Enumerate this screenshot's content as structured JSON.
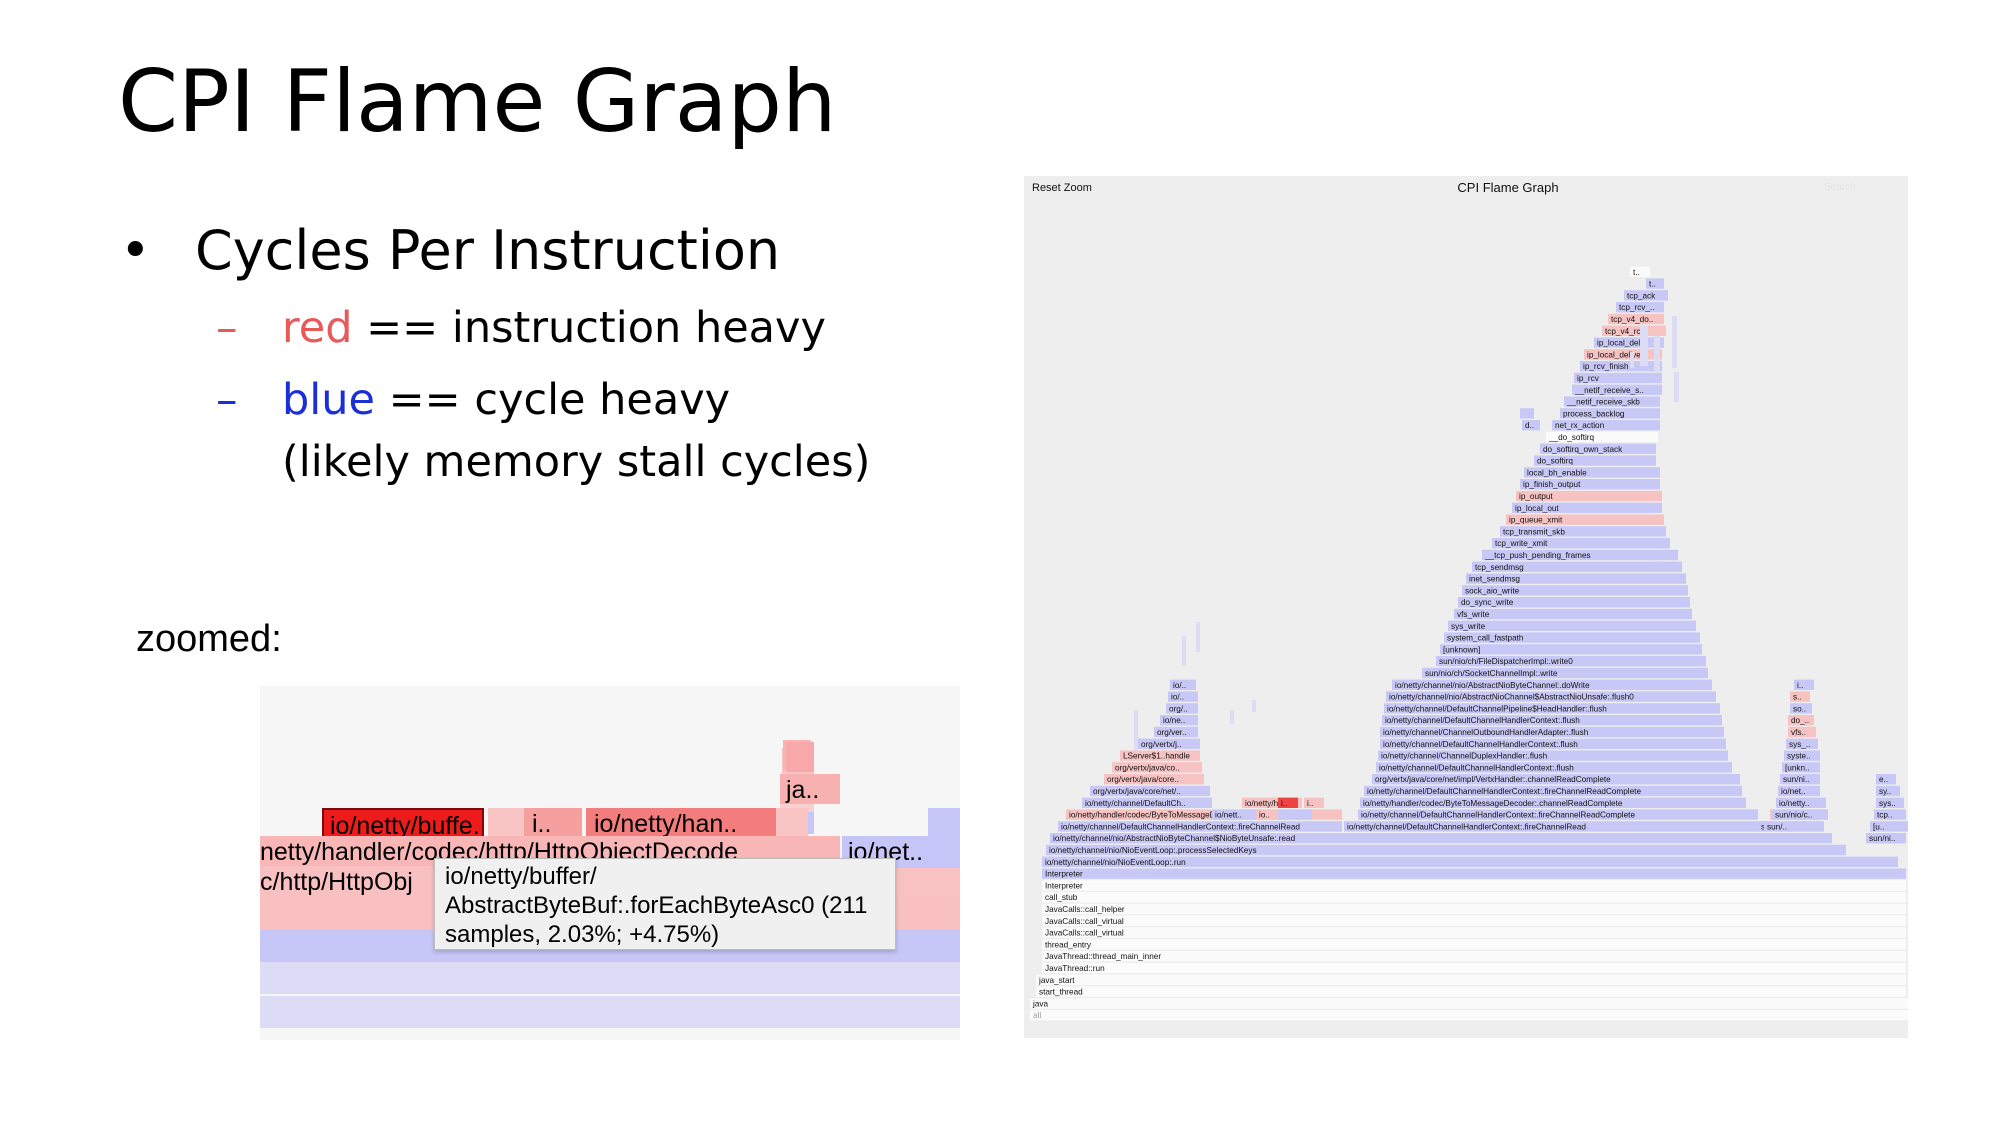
{
  "slide": {
    "title": "CPI Flame Graph",
    "bullet": "Cycles Per Instruction",
    "legend": [
      {
        "dash": "–",
        "term": "red",
        "rest": " == instruction heavy",
        "color": "#e8595a"
      },
      {
        "dash": "–",
        "term": "blue",
        "rest": " == cycle heavy",
        "color": "#1a2fd9"
      }
    ],
    "legend_note": "(likely memory stall cycles)",
    "zoomed_label": "zoomed:"
  },
  "zoom": {
    "frames": [
      {
        "label": "ja..",
        "color": "#f7b1b1"
      },
      {
        "label": "io/netty/buffe..",
        "color": "#ee1b1b"
      },
      {
        "label": "i..",
        "color": "#f59f9f"
      },
      {
        "label": "io/netty/han..",
        "color": "#f37d7d"
      },
      {
        "label": "netty/handler/codec/http/HttpObjectDecode",
        "color": "#f8b6b6"
      },
      {
        "label": "io/net..",
        "color": "#c5c5f7"
      },
      {
        "label": "c/http/HttpObj",
        "color": "#f8c0c0"
      }
    ],
    "tooltip": [
      "io/netty/buffer/",
      "AbstractByteBuf:.forEachByteAsc0 (211",
      "samples, 2.03%; +4.75%)"
    ]
  },
  "flame": {
    "reset_label": "Reset Zoom",
    "title": "CPI Flame Graph",
    "search_label": "Search",
    "colors": {
      "blue": "#c8c8f6",
      "red": "#f6c2c2",
      "white": "#fbfbfb",
      "pale": "#dcdcf4",
      "hot": "#ef4444"
    },
    "frames": [
      [
        "all",
        "white"
      ],
      [
        "java",
        "white"
      ],
      [
        "start_thread",
        "white"
      ],
      [
        "java_start",
        "white"
      ],
      [
        "JavaThread::run",
        "white"
      ],
      [
        "JavaThread::thread_main_inner",
        "white"
      ],
      [
        "thread_entry",
        "white"
      ],
      [
        "JavaCalls::call_virtual",
        "white"
      ],
      [
        "JavaCalls::call_virtual",
        "white"
      ],
      [
        "JavaCalls::call_helper",
        "white"
      ],
      [
        "call_stub",
        "white"
      ],
      [
        "Interpreter",
        "white"
      ],
      [
        "Interpreter",
        "blue"
      ],
      [
        "io/netty/channel/nio/NioEventLoop:.run",
        "blue"
      ],
      [
        "io/netty/channel/nio/NioEventLoop:.processSelectedKeys",
        "blue"
      ],
      [
        "io/netty/channel/nio/AbstractNioByteChannel$NioByteUnsafe:.read",
        "blue"
      ],
      [
        "io/netty/channel/DefaultChannelHandlerContext:.fireChannelRead",
        "blue"
      ],
      [
        "io/netty/handler/codec/ByteToMessageDecoder:.channelRead",
        "red"
      ],
      [
        "io/netty/channel/DefaultChan..",
        "blue"
      ],
      [
        "org/vertx/java/core/net/imp..",
        "blue"
      ],
      [
        "org/vertx/java/core/http..",
        "red"
      ],
      [
        "org/vertx/java/core/http..",
        "red"
      ],
      [
        "LServer$1..handle",
        "red"
      ],
      [
        "org/vertx/jav..",
        "blue"
      ],
      [
        "org/vertx..",
        "blue"
      ],
      [
        "io/netty/..",
        "blue"
      ],
      [
        "org/ver..",
        "blue"
      ],
      [
        "io/nett..",
        "blue"
      ],
      [
        "io/n..",
        "blue"
      ],
      [
        "io/netty/channel/DefaultChannelHandlerContext:.fireChannelRead",
        "blue"
      ],
      [
        "io/netty/channel/DefaultChannelHandlerContext:.fireChannelReadComplete",
        "blue"
      ],
      [
        "io/netty/handler/codec/ByteToMessageDecoder:.channelReadComplete",
        "blue"
      ],
      [
        "io/netty/channel/DefaultChannelHandlerContext:.fireChannelReadComplete",
        "blue"
      ],
      [
        "org/vertx/java/core/net/impl/VertxHandler:.channelReadComplete",
        "blue"
      ],
      [
        "io/netty/channel/DefaultChannelHandlerContext:.flush",
        "blue"
      ],
      [
        "io/netty/channel/ChannelDuplexHandler:.flush",
        "blue"
      ],
      [
        "io/netty/channel/DefaultChannelHandlerContext:.flush",
        "blue"
      ],
      [
        "io/netty/channel/ChannelOutboundHandlerAdapter:.flush",
        "blue"
      ],
      [
        "io/netty/channel/DefaultChannelHandlerContext:.flush",
        "blue"
      ],
      [
        "io/netty/channel/DefaultChannelPipeline$HeadHandler:.flush",
        "blue"
      ],
      [
        "io/netty/channel/nio/AbstractNioChannel$AbstractNioUnsafe:.flush0",
        "blue"
      ],
      [
        "io/netty/channel/nio/AbstractNioByteChannel:.doWrite",
        "blue"
      ],
      [
        "sun/nio/ch/SocketChannelImpl:.write",
        "blue"
      ],
      [
        "sun/nio/ch/FileDispatcherImpl:.write0",
        "blue"
      ],
      [
        "[unknown]",
        "blue"
      ],
      [
        "system_call_fastpath",
        "blue"
      ],
      [
        "sys_write",
        "blue"
      ],
      [
        "vfs_write",
        "blue"
      ],
      [
        "do_sync_write",
        "blue"
      ],
      [
        "sock_aio_write",
        "blue"
      ],
      [
        "inet_sendmsg",
        "blue"
      ],
      [
        "tcp_sendmsg",
        "blue"
      ],
      [
        "__tcp_push_pending_frames",
        "blue"
      ],
      [
        "tcp_write_xmit",
        "blue"
      ],
      [
        "tcp_transmit_skb",
        "blue"
      ],
      [
        "ip_queue_xmit",
        "red"
      ],
      [
        "ip_local_out",
        "blue"
      ],
      [
        "ip_output",
        "red"
      ],
      [
        "ip_finish_output",
        "blue"
      ],
      [
        "local_bh_enable",
        "blue"
      ],
      [
        "do_softirq",
        "blue"
      ],
      [
        "do_softirq_own_stack",
        "blue"
      ],
      [
        "__do_softirq",
        "white"
      ],
      [
        "net_rx_action",
        "blue"
      ],
      [
        "process_backlog",
        "blue"
      ],
      [
        "__netif_receive_skb",
        "blue"
      ],
      [
        "__netif_receive_skb_c..",
        "blue"
      ],
      [
        "ip_rcv",
        "blue"
      ],
      [
        "ip_rcv_finish",
        "blue"
      ],
      [
        "ip_local_deliver",
        "red"
      ],
      [
        "ip_local_deliver_fin..",
        "blue"
      ],
      [
        "tcp_v4_rcv",
        "red"
      ],
      [
        "tcp_v4_do_rcv",
        "red"
      ],
      [
        "tcp_rcv_establ..",
        "blue"
      ],
      [
        "tcp_ack",
        "blue"
      ],
      [
        "tc..",
        "blue"
      ],
      [
        "tcp..",
        "white"
      ],
      [
        "io/nett..",
        "blue"
      ],
      [
        "io/netty/handl..",
        "red"
      ],
      [
        "i..",
        "red"
      ],
      [
        "io..",
        "red"
      ],
      [
        "io..",
        "hot"
      ],
      [
        "io/nett..",
        "red"
      ],
      [
        "sun/ni..",
        "blue"
      ],
      [
        "sun/nio..",
        "blue"
      ],
      [
        "sun/..",
        "blue"
      ],
      [
        "sun/nio/ch/So..",
        "blue"
      ],
      [
        "io/netty/channel..",
        "blue"
      ],
      [
        "io/netty/buffer/..",
        "blue"
      ],
      [
        "sun/nio..",
        "blue"
      ],
      [
        "[unkn..",
        "blue"
      ],
      [
        "syste..",
        "blue"
      ],
      [
        "sys_read",
        "blue"
      ],
      [
        "vfs_r..",
        "red"
      ],
      [
        "do_..",
        "red"
      ],
      [
        "soc..",
        "blue"
      ],
      [
        "soc..",
        "red"
      ],
      [
        "ine..",
        "blue"
      ],
      [
        "tcp..",
        "blue"
      ],
      [
        "sys..",
        "blue"
      ],
      [
        "sy..",
        "blue"
      ],
      [
        "e..",
        "blue"
      ],
      [
        "[u..",
        "blue"
      ],
      [
        "s..",
        "blue"
      ],
      [
        "d..",
        "blue"
      ],
      [
        "_..",
        "blue"
      ]
    ]
  }
}
